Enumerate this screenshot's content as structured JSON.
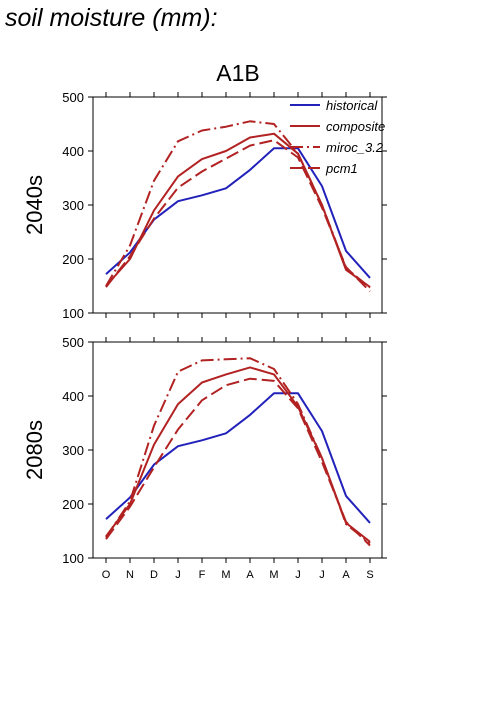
{
  "page": {
    "title": "soil moisture (mm):"
  },
  "chart_data": {
    "type": "line",
    "scenario": "A1B",
    "x": [
      "O",
      "N",
      "D",
      "J",
      "F",
      "M",
      "A",
      "M",
      "J",
      "J",
      "A",
      "S"
    ],
    "ylim": [
      100,
      500
    ],
    "yticks": [
      100,
      200,
      300,
      400,
      500
    ],
    "grid": false,
    "legend_position": "top-right",
    "colors": {
      "historical": "#2222bb",
      "scenario": "#b22222"
    },
    "legend": [
      {
        "name": "historical",
        "style": "solid",
        "color": "#2222bb"
      },
      {
        "name": "composite",
        "style": "solid",
        "color": "#b22222"
      },
      {
        "name": "miroc_3.2",
        "style": "dashdot",
        "color": "#b22222"
      },
      {
        "name": "pcm1",
        "style": "dashed",
        "color": "#b22222"
      }
    ],
    "panels": [
      {
        "label": "2040s",
        "series": [
          {
            "name": "historical",
            "values": [
              172,
              212,
              273,
              307,
              318,
              331,
              365,
              405,
              405,
              335,
              215,
              165
            ]
          },
          {
            "name": "composite",
            "values": [
              150,
              200,
              290,
              353,
              385,
              400,
              425,
              432,
              395,
              300,
              180,
              148
            ]
          },
          {
            "name": "miroc_3.2",
            "values": [
              150,
              225,
              345,
              418,
              438,
              445,
              455,
              450,
              395,
              300,
              183,
              147
            ]
          },
          {
            "name": "pcm1",
            "values": [
              148,
              205,
              275,
              332,
              362,
              386,
              410,
              420,
              388,
              295,
              185,
              140
            ]
          }
        ]
      },
      {
        "label": "2080s",
        "series": [
          {
            "name": "historical",
            "values": [
              172,
              212,
              273,
              307,
              318,
              331,
              365,
              405,
              405,
              335,
              215,
              165
            ]
          },
          {
            "name": "composite",
            "values": [
              140,
              200,
              310,
              385,
              425,
              440,
              453,
              440,
              380,
              285,
              165,
              130
            ]
          },
          {
            "name": "miroc_3.2",
            "values": [
              138,
              205,
              345,
              445,
              466,
              468,
              470,
              450,
              385,
              285,
              163,
              127
            ]
          },
          {
            "name": "pcm1",
            "values": [
              135,
              195,
              268,
              338,
              392,
              420,
              432,
              428,
              377,
              278,
              167,
              123
            ]
          }
        ]
      }
    ]
  }
}
